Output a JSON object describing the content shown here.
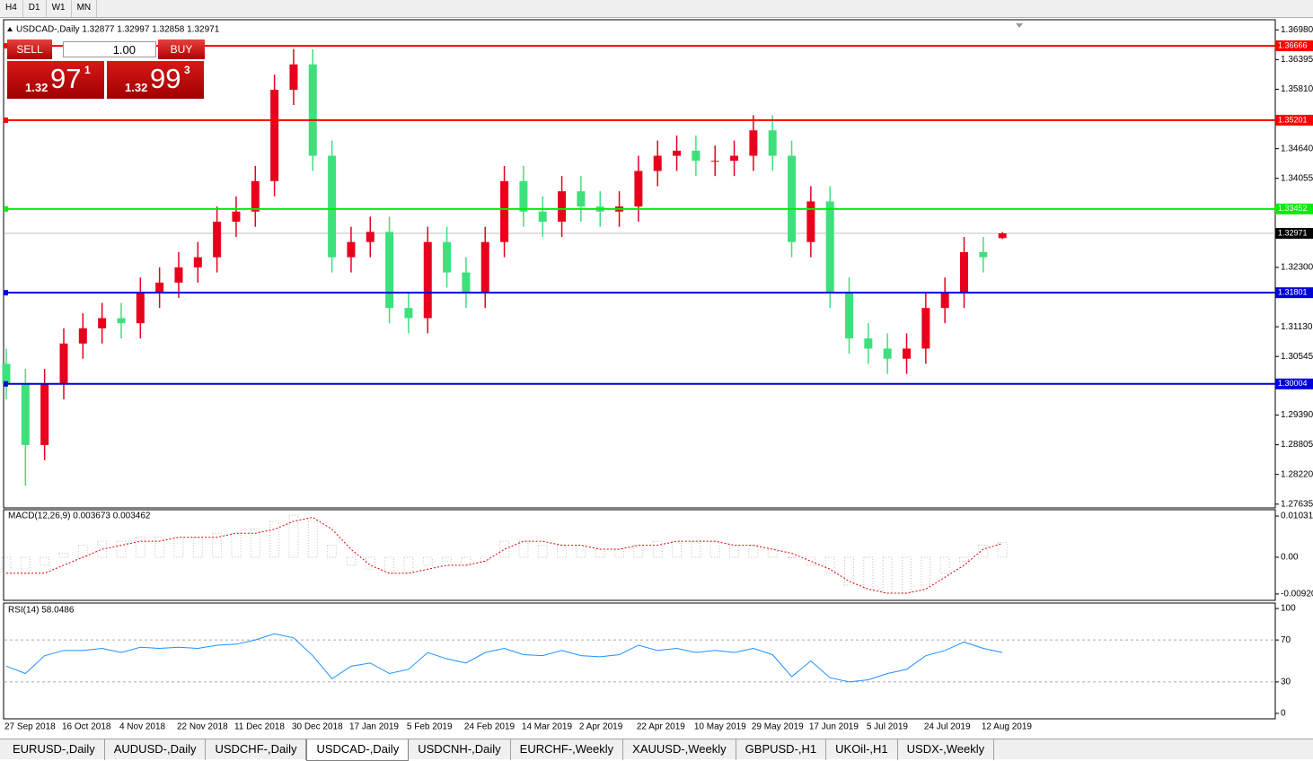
{
  "toolbar": {
    "timeframes": [
      "H4",
      "D1",
      "W1",
      "MN"
    ]
  },
  "trade_panel": {
    "sell": "SELL",
    "lot": "1.00",
    "buy": "BUY",
    "bid": {
      "big": "1.32",
      "pips": "97",
      "fraction": "1"
    },
    "ask": {
      "big": "1.32",
      "pips": "99",
      "fraction": "3"
    }
  },
  "chart_data": [
    {
      "type": "candlestick",
      "title": "USDCAD-,Daily  1.32877 1.32997 1.32858 1.32971",
      "categories": [
        "27 Sep 2018",
        null,
        null,
        "16 Oct 2018",
        null,
        null,
        "4 Nov 2018",
        null,
        null,
        "22 Nov 2018",
        null,
        null,
        "11 Dec 2018",
        null,
        null,
        "30 Dec 2018",
        null,
        null,
        "17 Jan 2019",
        null,
        null,
        "5 Feb 2019",
        null,
        null,
        "24 Feb 2019",
        null,
        null,
        "14 Mar 2019",
        null,
        null,
        "2 Apr 2019",
        null,
        null,
        "22 Apr 2019",
        null,
        null,
        "10 May 2019",
        null,
        null,
        "29 May 2019",
        null,
        null,
        "17 Jun 2019",
        null,
        null,
        "5 Jul 2019",
        null,
        null,
        "24 Jul 2019",
        null,
        null,
        "12 Aug 2019",
        null
      ],
      "open": [
        1.304,
        1.3,
        1.288,
        1.3,
        1.308,
        1.311,
        1.313,
        1.312,
        1.318,
        1.32,
        1.323,
        1.325,
        1.332,
        1.334,
        1.34,
        1.358,
        1.363,
        1.345,
        1.325,
        1.328,
        1.33,
        1.315,
        1.313,
        1.328,
        1.322,
        1.318,
        1.328,
        1.34,
        1.334,
        1.332,
        1.338,
        1.335,
        1.334,
        1.335,
        1.342,
        1.345,
        1.346,
        1.344,
        1.344,
        1.345,
        1.35,
        1.345,
        1.328,
        1.336,
        1.318,
        1.309,
        1.307,
        1.305,
        1.307,
        1.315,
        1.318,
        1.326,
        1.32877
      ],
      "high": [
        1.307,
        1.303,
        1.303,
        1.311,
        1.314,
        1.316,
        1.316,
        1.321,
        1.323,
        1.326,
        1.328,
        1.335,
        1.337,
        1.343,
        1.361,
        1.366,
        1.366,
        1.348,
        1.331,
        1.333,
        1.333,
        1.318,
        1.331,
        1.331,
        1.325,
        1.331,
        1.343,
        1.343,
        1.337,
        1.341,
        1.341,
        1.338,
        1.338,
        1.345,
        1.348,
        1.349,
        1.349,
        1.347,
        1.348,
        1.353,
        1.353,
        1.348,
        1.339,
        1.339,
        1.321,
        1.312,
        1.31,
        1.31,
        1.318,
        1.321,
        1.329,
        1.329,
        1.32997
      ],
      "low": [
        1.297,
        1.28,
        1.285,
        1.297,
        1.305,
        1.308,
        1.309,
        1.309,
        1.315,
        1.317,
        1.32,
        1.322,
        1.329,
        1.331,
        1.337,
        1.355,
        1.342,
        1.322,
        1.322,
        1.325,
        1.312,
        1.31,
        1.31,
        1.319,
        1.315,
        1.315,
        1.325,
        1.331,
        1.329,
        1.329,
        1.332,
        1.331,
        1.331,
        1.332,
        1.339,
        1.342,
        1.341,
        1.341,
        1.341,
        1.342,
        1.342,
        1.325,
        1.325,
        1.315,
        1.306,
        1.304,
        1.302,
        1.302,
        1.304,
        1.312,
        1.315,
        1.322,
        1.32858
      ],
      "close": [
        1.3,
        1.288,
        1.3,
        1.308,
        1.311,
        1.313,
        1.312,
        1.318,
        1.32,
        1.323,
        1.325,
        1.332,
        1.334,
        1.34,
        1.358,
        1.363,
        1.345,
        1.325,
        1.328,
        1.33,
        1.315,
        1.313,
        1.328,
        1.322,
        1.318,
        1.328,
        1.34,
        1.334,
        1.332,
        1.338,
        1.335,
        1.334,
        1.335,
        1.342,
        1.345,
        1.346,
        1.344,
        1.344,
        1.345,
        1.35,
        1.345,
        1.328,
        1.336,
        1.318,
        1.309,
        1.307,
        1.305,
        1.307,
        1.315,
        1.318,
        1.326,
        1.325,
        1.32971
      ],
      "up_color": "#e8001c",
      "down_color": "#3ee07c",
      "ylim": [
        1.2756,
        1.3718
      ],
      "yticks": [
        {
          "value": 1.3698,
          "label": "1.36980"
        },
        1.36395,
        {
          "value": 1.3581,
          "label": "1.35810"
        },
        {
          "value": 1.3464,
          "label": "1.34640"
        },
        1.34055,
        {
          "value": 1.323,
          "label": "1.32300"
        },
        {
          "value": 1.3113,
          "label": "1.31130"
        },
        1.30545,
        {
          "value": 1.2939,
          "label": "1.29390"
        },
        1.28805,
        {
          "value": 1.2822,
          "label": "1.28220"
        },
        1.27635
      ],
      "levels": [
        {
          "value": 1.36666,
          "color": "#ff0000"
        },
        {
          "value": 1.35201,
          "color": "#ff0000"
        },
        {
          "value": 1.33452,
          "color": "#00ee00"
        },
        {
          "value": 1.31801,
          "color": "#0000dd"
        },
        {
          "value": 1.30004,
          "color": "#0000dd"
        }
      ],
      "last_price": 1.32971
    },
    {
      "type": "macd",
      "title": "MACD(12,26,9) 0.003673 0.003462",
      "values": [
        -0.004,
        -0.004,
        -0.002,
        0.001,
        0.003,
        0.004,
        0.004,
        0.005,
        0.005,
        0.005,
        0.005,
        0.006,
        0.006,
        0.007,
        0.009,
        0.0105,
        0.009,
        0.003,
        -0.002,
        -0.003,
        -0.004,
        -0.004,
        -0.002,
        -0.001,
        -0.002,
        -0.001,
        0.004,
        0.004,
        0.003,
        0.003,
        0.003,
        0.002,
        0.002,
        0.003,
        0.004,
        0.004,
        0.004,
        0.004,
        0.003,
        0.003,
        0.002,
        0.0,
        -0.002,
        -0.004,
        -0.007,
        -0.008,
        -0.009,
        -0.009,
        -0.007,
        -0.004,
        -0.001,
        0.003,
        0.003673
      ],
      "signal": [
        -0.004,
        -0.004,
        -0.004,
        -0.002,
        0.0,
        0.002,
        0.003,
        0.004,
        0.004,
        0.005,
        0.005,
        0.005,
        0.006,
        0.006,
        0.007,
        0.009,
        0.01,
        0.007,
        0.002,
        -0.002,
        -0.004,
        -0.004,
        -0.003,
        -0.002,
        -0.002,
        -0.001,
        0.002,
        0.004,
        0.004,
        0.003,
        0.003,
        0.002,
        0.002,
        0.003,
        0.003,
        0.004,
        0.004,
        0.004,
        0.003,
        0.003,
        0.002,
        0.001,
        -0.001,
        -0.003,
        -0.006,
        -0.008,
        -0.009,
        -0.009,
        -0.008,
        -0.005,
        -0.002,
        0.002,
        0.003462
      ],
      "color": "#c0c0c0",
      "signal_color": "#e00000",
      "ylim": [
        -0.0108,
        0.0119
      ],
      "yticks": [
        0.010311,
        {
          "value": 0,
          "label": "0.00"
        },
        -0.009207
      ]
    },
    {
      "type": "line",
      "title": "RSI(14) 58.0486",
      "values": [
        45,
        38,
        55,
        60,
        60,
        62,
        58,
        63,
        62,
        63,
        62,
        65,
        66,
        70,
        76,
        72,
        55,
        33,
        45,
        48,
        38,
        42,
        58,
        52,
        48,
        58,
        62,
        56,
        55,
        60,
        55,
        54,
        56,
        65,
        60,
        62,
        58,
        60,
        58,
        62,
        56,
        35,
        50,
        34,
        30,
        32,
        38,
        42,
        55,
        60,
        68,
        62,
        58.0486
      ],
      "color": "#1e90ff",
      "ylim": [
        -5.2,
        105.2
      ],
      "yticks": [
        100,
        70,
        30,
        0
      ]
    }
  ],
  "tabs": [
    "EURUSD-,Daily",
    "AUDUSD-,Daily",
    "USDCHF-,Daily",
    "USDCAD-,Daily",
    "USDCNH-,Daily",
    "EURCHF-,Weekly",
    "XAUUSD-,Weekly",
    "GBPUSD-,H1",
    "UKOil-,H1",
    "USDX-,Weekly"
  ],
  "active_tab": 3
}
